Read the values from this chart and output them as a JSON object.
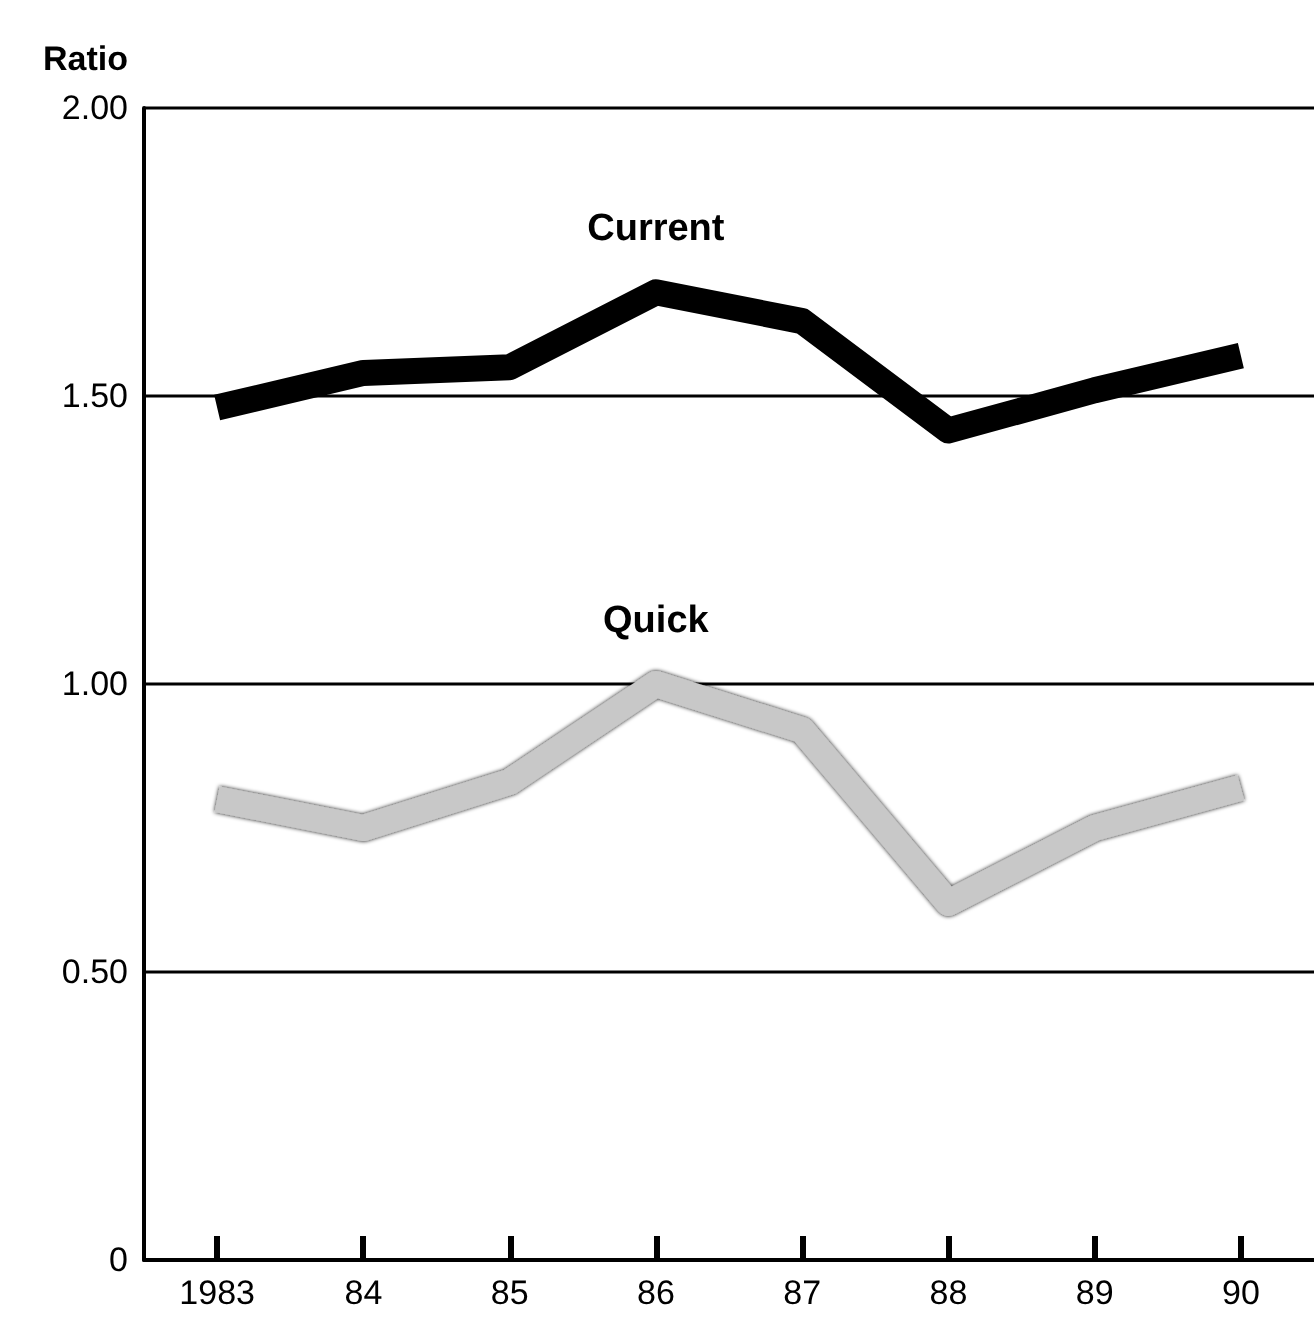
{
  "chart_data": {
    "type": "line",
    "ylabel": "Ratio",
    "categories": [
      "1983",
      "84",
      "85",
      "86",
      "87",
      "88",
      "89",
      "90"
    ],
    "series": [
      {
        "name": "Current",
        "color": "#000000",
        "values": [
          1.48,
          1.54,
          1.55,
          1.68,
          1.63,
          1.44,
          1.51,
          1.57
        ]
      },
      {
        "name": "Quick",
        "color": "#c8c8c8",
        "values": [
          0.8,
          0.75,
          0.83,
          1.0,
          0.92,
          0.62,
          0.75,
          0.82
        ]
      }
    ],
    "ylim": [
      0,
      2
    ],
    "yticks": [
      {
        "value": 0,
        "label": "0"
      },
      {
        "value": 0.5,
        "label": "0.50"
      },
      {
        "value": 1,
        "label": "1.00"
      },
      {
        "value": 1.5,
        "label": "1.50"
      },
      {
        "value": 2,
        "label": "2.00"
      }
    ],
    "grid": "y",
    "legend": false,
    "marker": "none",
    "line_style": "solid"
  }
}
